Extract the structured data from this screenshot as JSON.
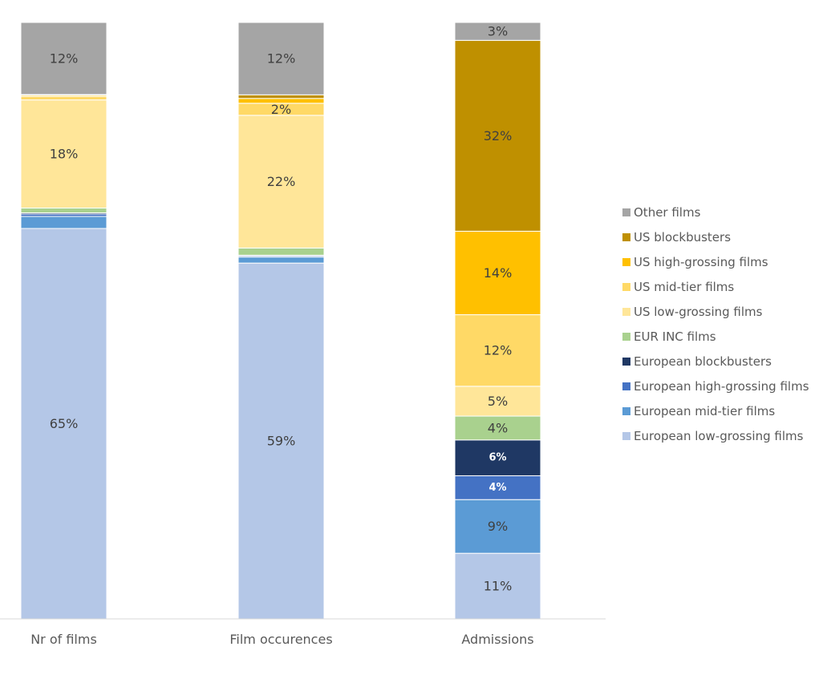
{
  "chart_data": {
    "type": "bar",
    "stacked": true,
    "normalized": true,
    "title": "",
    "xlabel": "",
    "ylabel": "",
    "ylim": [
      0,
      100
    ],
    "grid": false,
    "legend_position": "right",
    "categories": [
      "Nr of films",
      "Film occurences",
      "Admissions"
    ],
    "series": [
      {
        "name": "European low-grossing films",
        "color": "#b4c7e7",
        "values": [
          65,
          59,
          11
        ]
      },
      {
        "name": "European mid-tier films",
        "color": "#5b9bd5",
        "values": [
          2,
          1,
          9
        ]
      },
      {
        "name": "European high-grossing films",
        "color": "#4472c4",
        "values": [
          0.4,
          0.2,
          4
        ]
      },
      {
        "name": "European blockbusters",
        "color": "#1f3864",
        "values": [
          0.2,
          0.1,
          6
        ]
      },
      {
        "name": "EUR INC films",
        "color": "#a9d18e",
        "values": [
          0.8,
          1.2,
          4
        ]
      },
      {
        "name": "US low-grossing films",
        "color": "#ffe699",
        "values": [
          18,
          22,
          5
        ]
      },
      {
        "name": "US mid-tier films",
        "color": "#ffd966",
        "values": [
          0.6,
          2,
          12
        ]
      },
      {
        "name": "US high-grossing films",
        "color": "#ffc000",
        "values": [
          0.2,
          0.8,
          14
        ]
      },
      {
        "name": "US blockbusters",
        "color": "#bf9000",
        "values": [
          0.1,
          0.6,
          32
        ]
      },
      {
        "name": "Other films",
        "color": "#a5a5a5",
        "values": [
          12,
          12,
          3
        ]
      }
    ],
    "data_labels": [
      {
        "category": 0,
        "series": 0,
        "text": "65%"
      },
      {
        "category": 0,
        "series": 5,
        "text": "18%"
      },
      {
        "category": 0,
        "series": 9,
        "text": "12%"
      },
      {
        "category": 1,
        "series": 0,
        "text": "59%"
      },
      {
        "category": 1,
        "series": 5,
        "text": "22%"
      },
      {
        "category": 1,
        "series": 6,
        "text": "2%"
      },
      {
        "category": 1,
        "series": 9,
        "text": "12%"
      },
      {
        "category": 2,
        "series": 0,
        "text": "11%"
      },
      {
        "category": 2,
        "series": 1,
        "text": "9%"
      },
      {
        "category": 2,
        "series": 2,
        "text": "4%",
        "light": true
      },
      {
        "category": 2,
        "series": 3,
        "text": "6%",
        "light": true
      },
      {
        "category": 2,
        "series": 4,
        "text": "4%"
      },
      {
        "category": 2,
        "series": 5,
        "text": "5%"
      },
      {
        "category": 2,
        "series": 6,
        "text": "12%"
      },
      {
        "category": 2,
        "series": 7,
        "text": "14%"
      },
      {
        "category": 2,
        "series": 8,
        "text": "32%"
      },
      {
        "category": 2,
        "series": 9,
        "text": "3%"
      }
    ]
  }
}
